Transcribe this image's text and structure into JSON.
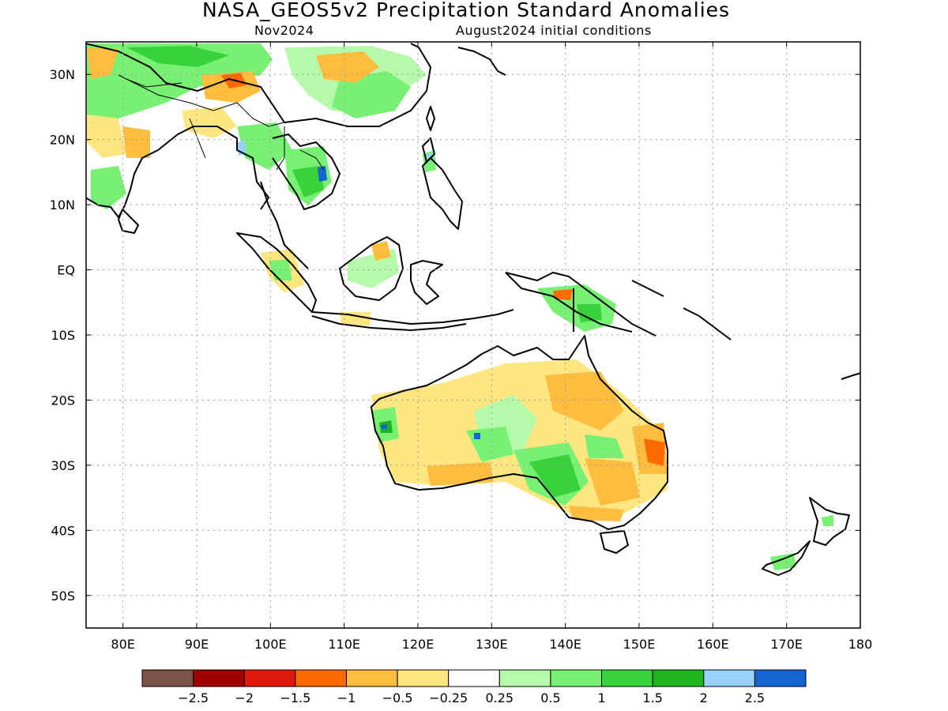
{
  "title": "NASA_GEOS5v2 Precipitation Standard Anomalies",
  "subtitle_left": "Nov2024",
  "subtitle_right": "August2024 initial conditions",
  "map": {
    "lon_range": [
      75,
      180
    ],
    "lat_range": [
      -55,
      35
    ],
    "lon_ticks": [
      {
        "value": 80,
        "label": "80E"
      },
      {
        "value": 90,
        "label": "90E"
      },
      {
        "value": 100,
        "label": "100E"
      },
      {
        "value": 110,
        "label": "110E"
      },
      {
        "value": 120,
        "label": "120E"
      },
      {
        "value": 130,
        "label": "130E"
      },
      {
        "value": 140,
        "label": "140E"
      },
      {
        "value": 150,
        "label": "150E"
      },
      {
        "value": 160,
        "label": "160E"
      },
      {
        "value": 170,
        "label": "170E"
      },
      {
        "value": 180,
        "label": "180"
      }
    ],
    "lat_ticks": [
      {
        "value": 30,
        "label": "30N"
      },
      {
        "value": 20,
        "label": "20N"
      },
      {
        "value": 10,
        "label": "10N"
      },
      {
        "value": 0,
        "label": "EQ"
      },
      {
        "value": -10,
        "label": "10S"
      },
      {
        "value": -20,
        "label": "20S"
      },
      {
        "value": -30,
        "label": "30S"
      },
      {
        "value": -40,
        "label": "40S"
      },
      {
        "value": -50,
        "label": "50S"
      }
    ],
    "grid": true
  },
  "colorbar": {
    "colors": [
      "#7a5547",
      "#a00000",
      "#e01a0a",
      "#ff6a00",
      "#ffbd40",
      "#ffe680",
      "#ffffff",
      "#b4faaa",
      "#78f073",
      "#37d23c",
      "#1eb41e",
      "#96d2fa",
      "#1464d2"
    ],
    "labels": [
      "−2.5",
      "−2",
      "−1.5",
      "−1",
      "−0.5",
      "−0.25",
      "0.25",
      "0.5",
      "1",
      "1.5",
      "2",
      "2.5"
    ]
  }
}
